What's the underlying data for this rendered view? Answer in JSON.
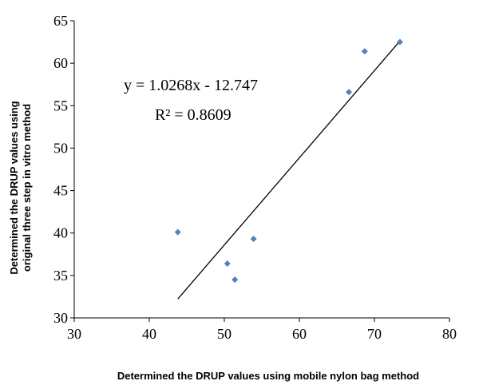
{
  "chart_data": {
    "type": "scatter",
    "xlabel": "Determined the DRUP  values using mobile nylon bag method",
    "ylabel_lines": [
      "Determined the DRUP  values using",
      "original  three step in vitro method"
    ],
    "xlim": [
      30,
      80
    ],
    "ylim": [
      30,
      65
    ],
    "xticks": [
      "30",
      "40",
      "50",
      "60",
      "70",
      "80"
    ],
    "yticks": [
      "30",
      "35",
      "40",
      "45",
      "50",
      "55",
      "60",
      "65"
    ],
    "grid": false,
    "marker_color": "#4F81BD",
    "trendline_color": "#000000",
    "series": [
      {
        "x": [
          43.8,
          50.4,
          51.4,
          53.9,
          66.6,
          68.7,
          73.4
        ],
        "y": [
          40.1,
          36.4,
          34.5,
          39.3,
          56.6,
          61.4,
          62.5
        ]
      }
    ],
    "trendline": {
      "slope": 1.0268,
      "intercept": -12.747,
      "x_range": [
        43.8,
        73.4
      ]
    },
    "annotations": {
      "equation": "y = 1.0268x - 12.747",
      "r_squared": "R² = 0.8609"
    }
  }
}
